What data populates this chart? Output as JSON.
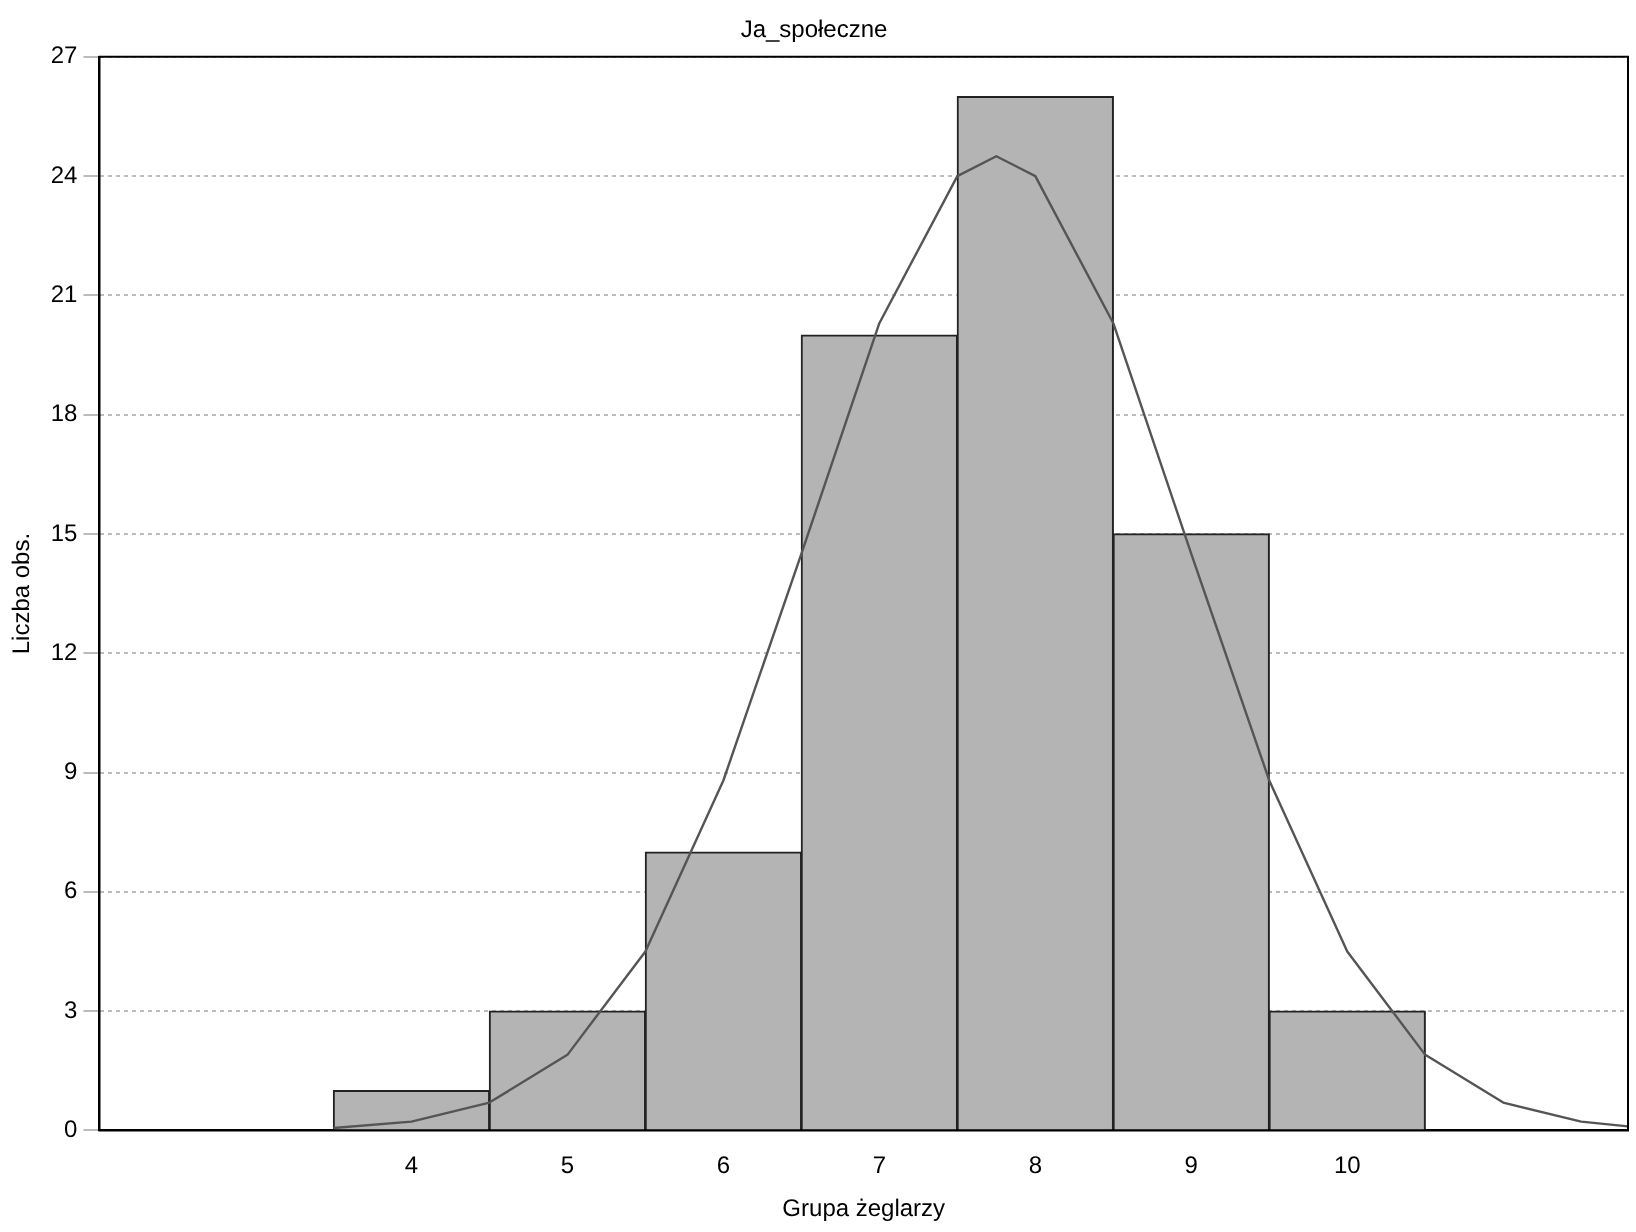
{
  "chart_data": {
    "type": "histogram",
    "title": "Ja_społeczne",
    "xlabel": "Grupa żeglarzy",
    "ylabel": "Liczba obs.",
    "bins": [
      3.5,
      4.5,
      5.5,
      6.5,
      7.5,
      8.5,
      9.5,
      10.5
    ],
    "values": [
      1,
      3,
      7,
      20,
      26,
      15,
      3
    ],
    "color": "#b4b4b4",
    "series": [
      {
        "type": "line",
        "color": "#555555",
        "x": [
          3.5,
          4,
          4.5,
          5,
          5.5,
          6,
          6.5,
          7,
          7.5,
          7.75,
          8,
          8.5,
          9,
          9.5,
          10,
          10.5,
          11,
          11.5,
          11.8
        ],
        "values": [
          0.06,
          0.22,
          0.7,
          1.9,
          4.5,
          8.8,
          14.5,
          20.3,
          24,
          24.5,
          24,
          20.3,
          14.5,
          8.8,
          4.5,
          1.9,
          0.7,
          0.22,
          0.1
        ]
      }
    ],
    "xlim": [
      2,
      11.8
    ],
    "xticks": [
      4,
      5,
      6,
      7,
      8,
      9,
      10
    ],
    "ylim": [
      0,
      27
    ],
    "yticks": [
      0,
      3,
      6,
      9,
      12,
      15,
      18,
      21,
      24,
      27
    ],
    "grid": "y",
    "legend": false,
    "marker": "none"
  }
}
